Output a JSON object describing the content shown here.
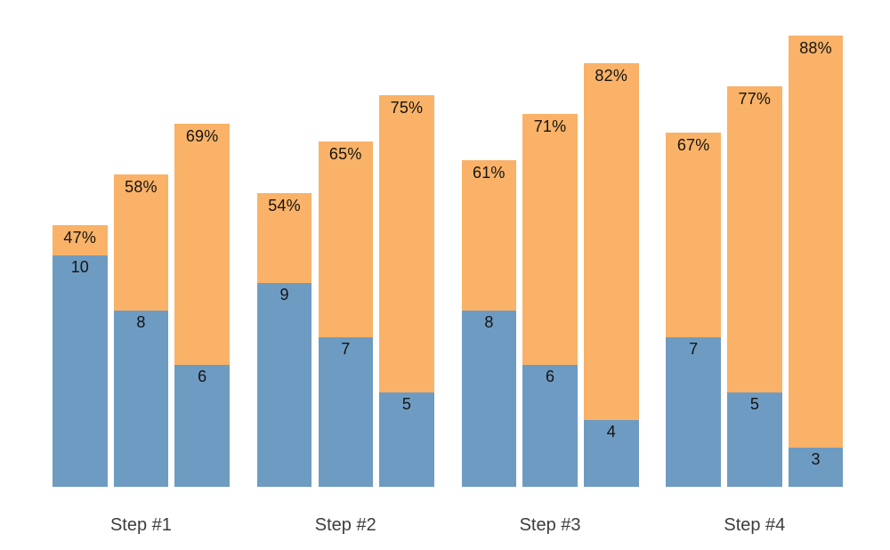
{
  "chart_data": {
    "type": "bar",
    "variant": "grouped-stacked",
    "title": "",
    "xlabel": "",
    "ylabel": "",
    "axes_visible": false,
    "grid": "off",
    "legend": "none",
    "background": "#ffffff",
    "categories": [
      "Step #1",
      "Step #2",
      "Step #3",
      "Step #4"
    ],
    "groups": [
      {
        "label": "Step #1",
        "bars": [
          {
            "count": 10,
            "count_label": "10",
            "percent": 47,
            "percent_label": "47%"
          },
          {
            "count": 8,
            "count_label": "8",
            "percent": 58,
            "percent_label": "58%"
          },
          {
            "count": 6,
            "count_label": "6",
            "percent": 69,
            "percent_label": "69%"
          }
        ]
      },
      {
        "label": "Step #2",
        "bars": [
          {
            "count": 9,
            "count_label": "9",
            "percent": 54,
            "percent_label": "54%"
          },
          {
            "count": 7,
            "count_label": "7",
            "percent": 65,
            "percent_label": "65%"
          },
          {
            "count": 5,
            "count_label": "5",
            "percent": 75,
            "percent_label": "75%"
          }
        ]
      },
      {
        "label": "Step #3",
        "bars": [
          {
            "count": 8,
            "count_label": "8",
            "percent": 61,
            "percent_label": "61%"
          },
          {
            "count": 6,
            "count_label": "6",
            "percent": 71,
            "percent_label": "71%"
          },
          {
            "count": 4,
            "count_label": "4",
            "percent": 82,
            "percent_label": "82%"
          }
        ]
      },
      {
        "label": "Step #4",
        "bars": [
          {
            "count": 7,
            "count_label": "7",
            "percent": 67,
            "percent_label": "67%"
          },
          {
            "count": 5,
            "count_label": "5",
            "percent": 77,
            "percent_label": "77%"
          },
          {
            "count": 3,
            "count_label": "3",
            "percent": 88,
            "percent_label": "88%"
          }
        ]
      }
    ],
    "colors": {
      "bottom_segment": "#6e9bc2",
      "top_segment": "#f9b267",
      "value_label_text": "#141414",
      "category_label_text": "#3d3d3d"
    }
  }
}
